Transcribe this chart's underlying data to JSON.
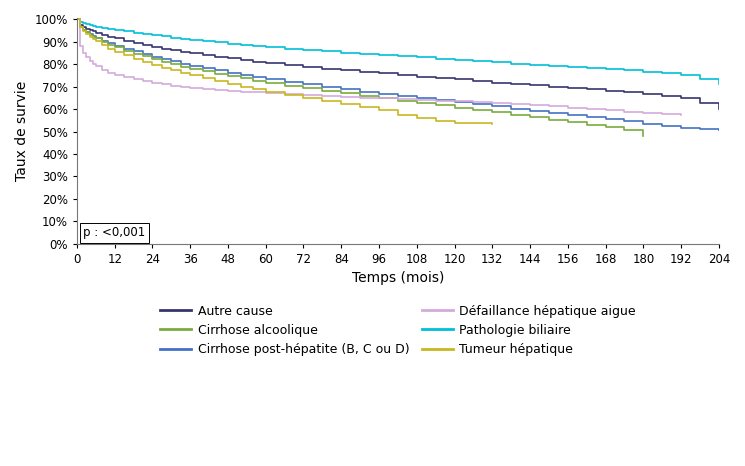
{
  "title": "",
  "xlabel": "Temps (mois)",
  "ylabel": "Taux de survie",
  "xlim": [
    0,
    204
  ],
  "ylim": [
    0,
    1.005
  ],
  "xticks": [
    0,
    12,
    24,
    36,
    48,
    60,
    72,
    84,
    96,
    108,
    120,
    132,
    144,
    156,
    168,
    180,
    192,
    204
  ],
  "yticks": [
    0.0,
    0.1,
    0.2,
    0.3,
    0.4,
    0.5,
    0.6,
    0.7,
    0.8,
    0.9,
    1.0
  ],
  "pvalue_text": "p : <0,001",
  "curves": [
    {
      "label": "Autre cause",
      "color": "#363570",
      "x": [
        0,
        1,
        2,
        3,
        4,
        5,
        6,
        8,
        10,
        12,
        15,
        18,
        21,
        24,
        27,
        30,
        33,
        36,
        40,
        44,
        48,
        52,
        56,
        60,
        66,
        72,
        78,
        84,
        90,
        96,
        102,
        108,
        114,
        120,
        126,
        132,
        138,
        144,
        150,
        156,
        162,
        168,
        174,
        180,
        186,
        192,
        198,
        204
      ],
      "y": [
        1.0,
        0.975,
        0.965,
        0.958,
        0.952,
        0.946,
        0.94,
        0.93,
        0.922,
        0.915,
        0.905,
        0.895,
        0.887,
        0.878,
        0.87,
        0.863,
        0.856,
        0.849,
        0.84,
        0.833,
        0.826,
        0.818,
        0.811,
        0.804,
        0.795,
        0.787,
        0.78,
        0.773,
        0.766,
        0.759,
        0.752,
        0.745,
        0.739,
        0.733,
        0.725,
        0.718,
        0.712,
        0.706,
        0.7,
        0.694,
        0.688,
        0.682,
        0.674,
        0.667,
        0.659,
        0.651,
        0.627,
        0.6
      ]
    },
    {
      "label": "Cirrhose post-hépatite (B, C ou D)",
      "color": "#4472C4",
      "x": [
        0,
        1,
        2,
        3,
        4,
        5,
        6,
        8,
        10,
        12,
        15,
        18,
        21,
        24,
        27,
        30,
        33,
        36,
        40,
        44,
        48,
        52,
        56,
        60,
        66,
        72,
        78,
        84,
        90,
        96,
        102,
        108,
        114,
        120,
        126,
        132,
        138,
        144,
        150,
        156,
        162,
        168,
        174,
        180,
        186,
        192,
        198,
        204
      ],
      "y": [
        1.0,
        0.968,
        0.953,
        0.942,
        0.933,
        0.925,
        0.918,
        0.905,
        0.893,
        0.882,
        0.869,
        0.857,
        0.845,
        0.834,
        0.823,
        0.813,
        0.803,
        0.793,
        0.782,
        0.772,
        0.762,
        0.752,
        0.742,
        0.733,
        0.721,
        0.71,
        0.699,
        0.688,
        0.678,
        0.668,
        0.658,
        0.649,
        0.64,
        0.631,
        0.621,
        0.612,
        0.602,
        0.593,
        0.583,
        0.574,
        0.564,
        0.555,
        0.545,
        0.535,
        0.525,
        0.515,
        0.51,
        0.505
      ]
    },
    {
      "label": "Pathologie biliaire",
      "color": "#00C0D8",
      "x": [
        0,
        1,
        2,
        3,
        4,
        5,
        6,
        8,
        10,
        12,
        15,
        18,
        21,
        24,
        27,
        30,
        33,
        36,
        40,
        44,
        48,
        52,
        56,
        60,
        66,
        72,
        78,
        84,
        90,
        96,
        102,
        108,
        114,
        120,
        126,
        132,
        138,
        144,
        150,
        156,
        162,
        168,
        174,
        180,
        186,
        192,
        198,
        204
      ],
      "y": [
        1.0,
        0.988,
        0.983,
        0.979,
        0.975,
        0.972,
        0.968,
        0.962,
        0.957,
        0.952,
        0.946,
        0.94,
        0.934,
        0.929,
        0.924,
        0.919,
        0.914,
        0.909,
        0.903,
        0.898,
        0.892,
        0.887,
        0.882,
        0.877,
        0.87,
        0.864,
        0.858,
        0.852,
        0.847,
        0.841,
        0.835,
        0.83,
        0.824,
        0.819,
        0.813,
        0.808,
        0.803,
        0.798,
        0.793,
        0.788,
        0.783,
        0.778,
        0.773,
        0.765,
        0.76,
        0.752,
        0.733,
        0.71
      ]
    },
    {
      "label": "Cirrhose alcoolique",
      "color": "#7AAB3E",
      "x": [
        0,
        1,
        2,
        3,
        4,
        5,
        6,
        8,
        10,
        12,
        15,
        18,
        21,
        24,
        27,
        30,
        33,
        36,
        40,
        44,
        48,
        52,
        56,
        60,
        66,
        72,
        78,
        84,
        90,
        96,
        102,
        108,
        114,
        120,
        126,
        132,
        138,
        144,
        150,
        156,
        162,
        168,
        174,
        180
      ],
      "y": [
        1.0,
        0.968,
        0.953,
        0.942,
        0.932,
        0.923,
        0.915,
        0.9,
        0.887,
        0.875,
        0.861,
        0.847,
        0.835,
        0.822,
        0.811,
        0.8,
        0.789,
        0.779,
        0.768,
        0.757,
        0.747,
        0.737,
        0.727,
        0.717,
        0.705,
        0.693,
        0.681,
        0.67,
        0.659,
        0.648,
        0.637,
        0.627,
        0.617,
        0.607,
        0.596,
        0.586,
        0.575,
        0.564,
        0.553,
        0.542,
        0.531,
        0.519,
        0.507,
        0.48
      ]
    },
    {
      "label": "Défaillance hépatique aigue",
      "color": "#D4AADC",
      "x": [
        0,
        1,
        2,
        3,
        4,
        5,
        6,
        8,
        10,
        12,
        15,
        18,
        21,
        24,
        27,
        30,
        33,
        36,
        40,
        44,
        48,
        52,
        56,
        60,
        66,
        72,
        78,
        84,
        90,
        96,
        102,
        108,
        114,
        120,
        126,
        132,
        138,
        144,
        150,
        156,
        162,
        168,
        174,
        180,
        186,
        192
      ],
      "y": [
        1.0,
        0.88,
        0.848,
        0.83,
        0.815,
        0.8,
        0.79,
        0.775,
        0.762,
        0.751,
        0.742,
        0.733,
        0.724,
        0.716,
        0.71,
        0.704,
        0.7,
        0.696,
        0.691,
        0.686,
        0.682,
        0.678,
        0.674,
        0.671,
        0.667,
        0.663,
        0.659,
        0.655,
        0.651,
        0.648,
        0.644,
        0.641,
        0.637,
        0.634,
        0.63,
        0.626,
        0.621,
        0.617,
        0.612,
        0.607,
        0.601,
        0.595,
        0.589,
        0.583,
        0.578,
        0.575
      ]
    },
    {
      "label": "Tumeur hépatique",
      "color": "#C8B820",
      "x": [
        0,
        1,
        2,
        3,
        4,
        5,
        6,
        8,
        10,
        12,
        15,
        18,
        21,
        24,
        27,
        30,
        33,
        36,
        40,
        44,
        48,
        52,
        56,
        60,
        66,
        72,
        78,
        84,
        90,
        96,
        102,
        108,
        114,
        120,
        126,
        132
      ],
      "y": [
        1.0,
        0.965,
        0.948,
        0.935,
        0.923,
        0.912,
        0.902,
        0.884,
        0.869,
        0.855,
        0.839,
        0.824,
        0.81,
        0.797,
        0.784,
        0.772,
        0.761,
        0.75,
        0.737,
        0.724,
        0.712,
        0.7,
        0.688,
        0.677,
        0.662,
        0.648,
        0.634,
        0.621,
        0.609,
        0.597,
        0.574,
        0.56,
        0.549,
        0.54,
        0.537,
        0.535
      ]
    }
  ],
  "legend_order": [
    0,
    3,
    1,
    4,
    2,
    5
  ],
  "legend_ncol": 2,
  "legend_fontsize": 9,
  "linewidth": 1.2,
  "background_color": "#FFFFFF"
}
